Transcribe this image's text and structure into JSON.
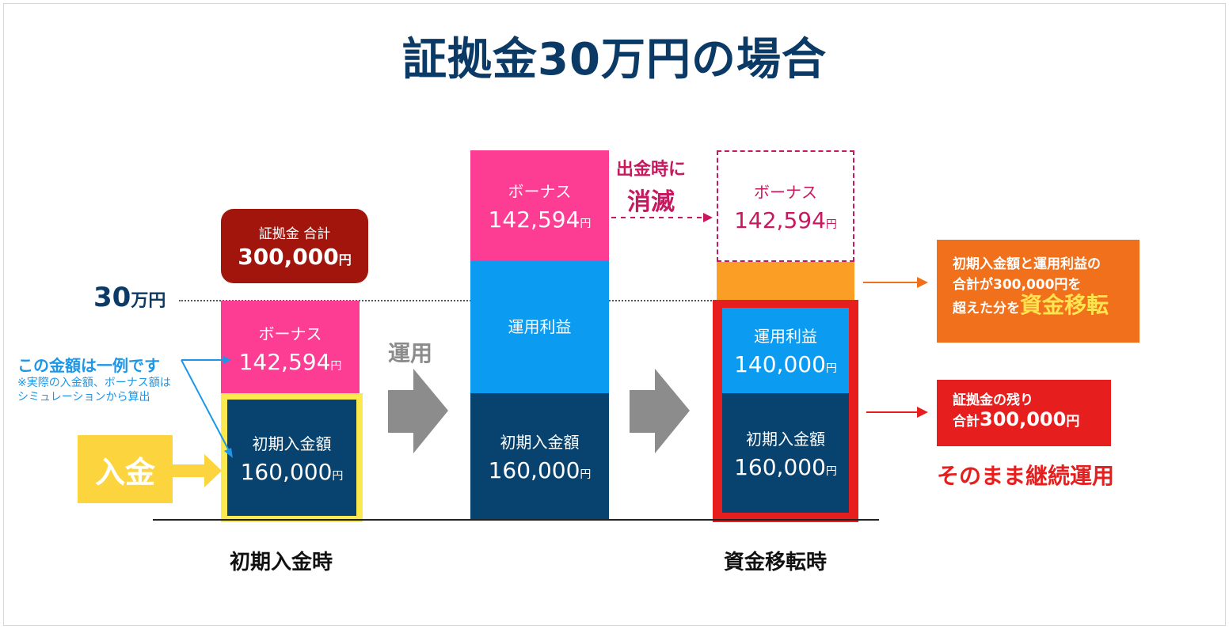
{
  "title": "証拠金30万円の場合",
  "level_label": {
    "value": "30",
    "unit": "万円"
  },
  "total_badge": {
    "label": "証拠金 合計",
    "amount": "300,000",
    "yen": "円"
  },
  "stage_labels": {
    "initial": "初期入金時",
    "transfer": "資金移転時",
    "operation": "運用"
  },
  "columns": {
    "initial": {
      "bonus": {
        "label": "ボーナス",
        "amount": "142,594",
        "yen": "円"
      },
      "deposit": {
        "label": "初期入金額",
        "amount": "160,000",
        "yen": "円"
      }
    },
    "middle": {
      "bonus": {
        "label": "ボーナス",
        "amount": "142,594",
        "yen": "円"
      },
      "profit": {
        "label": "運用利益"
      },
      "deposit": {
        "label": "初期入金額",
        "amount": "160,000",
        "yen": "円"
      }
    },
    "transfer": {
      "bonus": {
        "label": "ボーナス",
        "amount": "142,594",
        "yen": "円"
      },
      "profit": {
        "label": "運用利益",
        "amount": "140,000",
        "yen": "円"
      },
      "deposit": {
        "label": "初期入金額",
        "amount": "160,000",
        "yen": "円"
      }
    }
  },
  "deposit_tag": "入金",
  "example_note": {
    "main": "この金額は一例です",
    "sub1": "※実際の入金額、ボーナス額は",
    "sub2": "シミュレーションから算出"
  },
  "vanish_note": {
    "line1": "出金時に",
    "line2": "消滅"
  },
  "transfer_info": {
    "line1": "初期入金額と運用利益の",
    "line2": "合計が300,000円を",
    "line3": "超えた分を",
    "highlight": "資金移転"
  },
  "remaining_info": {
    "line1": "証拠金の残り",
    "prefix": "合計",
    "amount": "300,000",
    "yen": "円"
  },
  "continue_note": "そのまま継続運用",
  "colors": {
    "navy": "#08426e",
    "pink": "#fd3c93",
    "blue": "#0b9bf1",
    "orange": "#fa9e25",
    "red": "#e61e1e",
    "yellow": "#fcd43d",
    "dark_red": "#a1150d"
  }
}
